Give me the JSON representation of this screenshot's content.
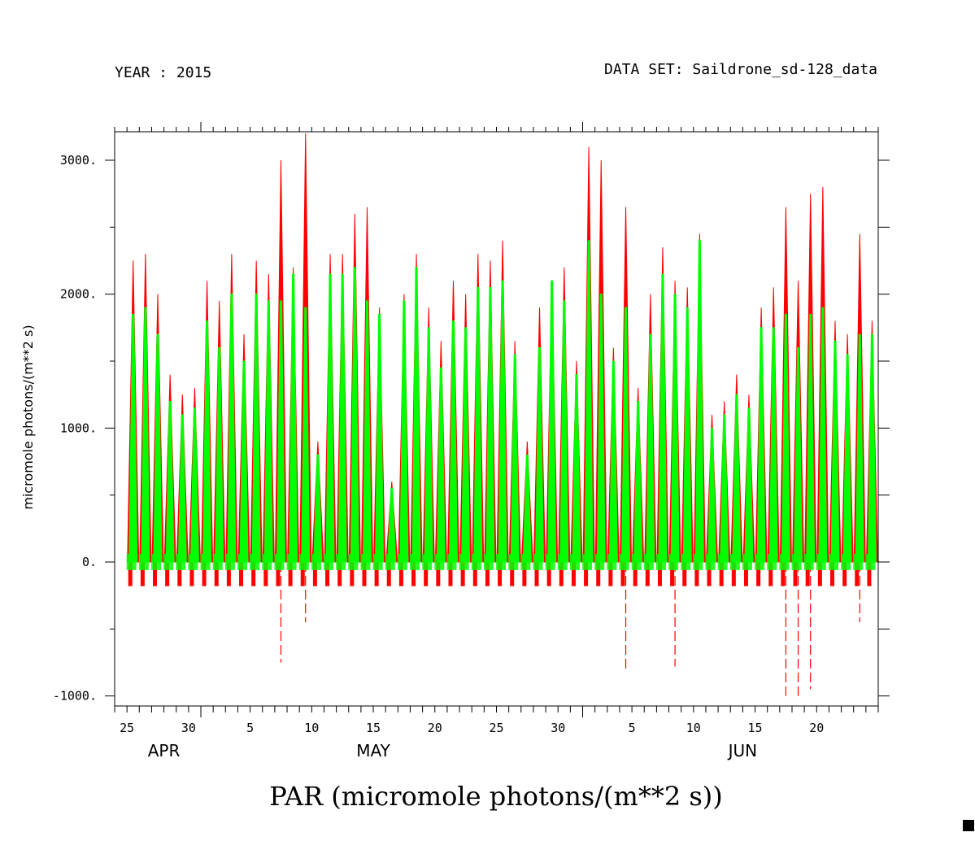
{
  "header": {
    "year_label": "YEAR : 2015",
    "dataset_label": "DATA SET: Saildrone_sd-128_data"
  },
  "chart_data": {
    "type": "line",
    "title": "PAR (micromole photons/(m**2 s))",
    "xlabel": "",
    "ylabel": "micromole photons/(m**2 s)",
    "ylim": [
      -1000,
      3000
    ],
    "y_ticks": [
      "3000.",
      "2000.",
      "1000.",
      "0.",
      "-1000."
    ],
    "x_tick_labels": [
      "25",
      "30",
      "5",
      "10",
      "15",
      "20",
      "25",
      "30",
      "5",
      "10",
      "15",
      "20"
    ],
    "month_labels": [
      "APR",
      "MAY",
      "JUN"
    ],
    "x_range": [
      "2015-04-24",
      "2015-06-25"
    ],
    "colors": {
      "series_1": "#ff0000",
      "series_2": "#00ff00"
    },
    "daily_peaks": {
      "dates": [
        "04-25",
        "04-26",
        "04-27",
        "04-28",
        "04-29",
        "04-30",
        "05-01",
        "05-02",
        "05-03",
        "05-04",
        "05-05",
        "05-06",
        "05-07",
        "05-08",
        "05-09",
        "05-10",
        "05-11",
        "05-12",
        "05-13",
        "05-14",
        "05-15",
        "05-16",
        "05-17",
        "05-18",
        "05-19",
        "05-20",
        "05-21",
        "05-22",
        "05-23",
        "05-24",
        "05-25",
        "05-26",
        "05-27",
        "05-28",
        "05-29",
        "05-30",
        "05-31",
        "06-01",
        "06-02",
        "06-03",
        "06-04",
        "06-05",
        "06-06",
        "06-07",
        "06-08",
        "06-09",
        "06-10",
        "06-11",
        "06-12",
        "06-13",
        "06-14",
        "06-15",
        "06-16",
        "06-17",
        "06-18",
        "06-19",
        "06-20",
        "06-21",
        "06-22",
        "06-23",
        "06-24"
      ],
      "series_1": [
        2250,
        2300,
        2000,
        1400,
        1250,
        1300,
        2100,
        1950,
        2300,
        1700,
        2250,
        2150,
        3000,
        2200,
        3200,
        900,
        2300,
        2300,
        2600,
        2650,
        1900,
        600,
        2000,
        2300,
        1900,
        1650,
        2100,
        2000,
        2300,
        2250,
        2400,
        1650,
        900,
        1900,
        2100,
        2200,
        1500,
        3100,
        3000,
        1600,
        2650,
        1300,
        2000,
        2350,
        2100,
        2050,
        2450,
        1100,
        1200,
        1400,
        1250,
        1900,
        2050,
        2650,
        2100,
        2750,
        2800,
        1800,
        1700,
        2450,
        1800
      ],
      "series_2": [
        1850,
        1900,
        1700,
        1200,
        1100,
        1150,
        1800,
        1600,
        2000,
        1500,
        2000,
        1950,
        1950,
        2150,
        1900,
        800,
        2150,
        2150,
        2200,
        1950,
        1850,
        550,
        1950,
        2200,
        1750,
        1450,
        1800,
        1750,
        2050,
        2050,
        2100,
        1550,
        800,
        1600,
        2100,
        1950,
        1400,
        2400,
        2000,
        1500,
        1900,
        1200,
        1700,
        2150,
        2000,
        1900,
        2400,
        1000,
        1100,
        1250,
        1150,
        1750,
        1750,
        1850,
        1600,
        1850,
        1900,
        1650,
        1550,
        1700,
        1700
      ],
      "troughs": [
        -180,
        -180,
        -180,
        -180,
        -180,
        -180,
        -180,
        -180,
        -180,
        -180,
        -180,
        -180,
        -750,
        -180,
        -450,
        -180,
        -180,
        -180,
        -180,
        -180,
        -180,
        -180,
        -180,
        -180,
        -180,
        -180,
        -180,
        -180,
        -180,
        -180,
        -180,
        -180,
        -180,
        -180,
        -180,
        -180,
        -180,
        -180,
        -180,
        -180,
        -800,
        -180,
        -180,
        -180,
        -780,
        -180,
        -100,
        -100,
        -100,
        -80,
        -120,
        -120,
        -100,
        -1000,
        -1000,
        -950,
        -150,
        -150,
        -100,
        -450,
        -100
      ]
    }
  }
}
